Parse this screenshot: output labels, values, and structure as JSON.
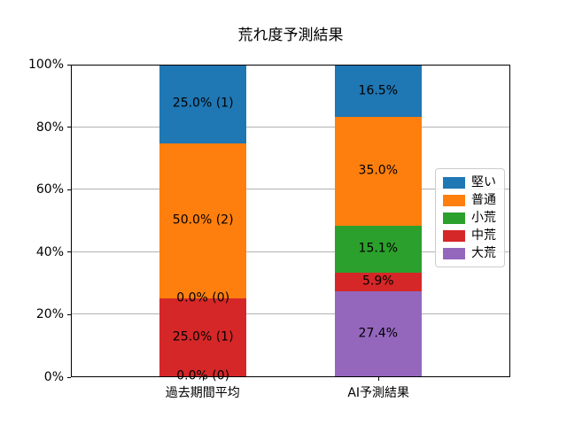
{
  "chart_data": {
    "type": "bar",
    "stacked": true,
    "title": "荒れ度予測結果",
    "categories": [
      "過去期間平均",
      "AI予測結果"
    ],
    "series": [
      {
        "name": "大荒",
        "color": "#9467bd",
        "values": [
          0.0,
          27.4
        ],
        "labels": [
          "0.0% (0)",
          "27.4%"
        ]
      },
      {
        "name": "中荒",
        "color": "#d62728",
        "values": [
          25.0,
          5.9
        ],
        "labels": [
          "25.0% (1)",
          "5.9%"
        ]
      },
      {
        "name": "小荒",
        "color": "#2ca02c",
        "values": [
          0.0,
          15.1
        ],
        "labels": [
          "0.0% (0)",
          "15.1%"
        ]
      },
      {
        "name": "普通",
        "color": "#ff7f0e",
        "values": [
          50.0,
          35.0
        ],
        "labels": [
          "50.0% (2)",
          "35.0%"
        ]
      },
      {
        "name": "堅い",
        "color": "#1f77b4",
        "values": [
          25.0,
          16.5
        ],
        "labels": [
          "25.0% (1)",
          "16.5%"
        ]
      }
    ],
    "ylim": [
      0,
      100
    ],
    "yticks": [
      {
        "label": "0%",
        "value": 0
      },
      {
        "label": "20%",
        "value": 20
      },
      {
        "label": "40%",
        "value": 40
      },
      {
        "label": "60%",
        "value": 60
      },
      {
        "label": "80%",
        "value": 80
      },
      {
        "label": "100%",
        "value": 100
      }
    ],
    "grid": true,
    "legend_position": "right-inside",
    "bar_centers_pct": [
      30,
      70
    ],
    "bar_width_pct": 19.8
  },
  "legend": {
    "entries": [
      {
        "label": "堅い",
        "color": "#1f77b4"
      },
      {
        "label": "普通",
        "color": "#ff7f0e"
      },
      {
        "label": "小荒",
        "color": "#2ca02c"
      },
      {
        "label": "中荒",
        "color": "#d62728"
      },
      {
        "label": "大荒",
        "color": "#9467bd"
      }
    ]
  }
}
